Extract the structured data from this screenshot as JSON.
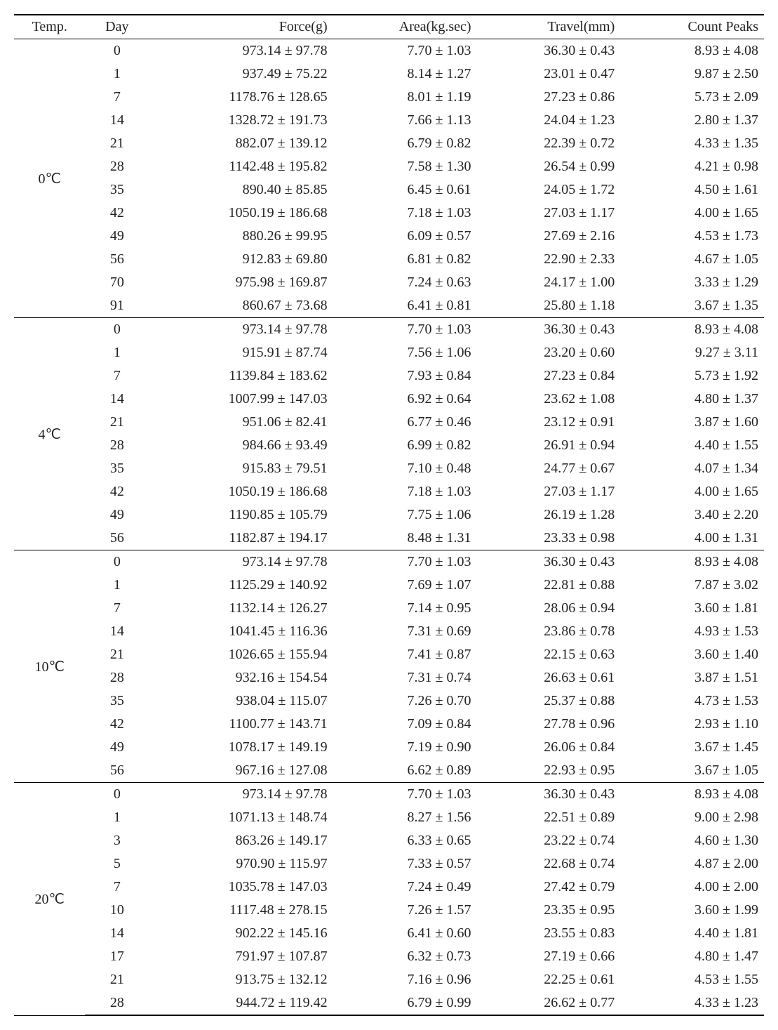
{
  "columns": {
    "temp": "Temp.",
    "day": "Day",
    "force": "Force(g)",
    "area": "Area(kg.sec)",
    "travel": "Travel(mm)",
    "count": "Count Peaks"
  },
  "groups": [
    {
      "temp": "0℃",
      "rows": [
        {
          "day": "0",
          "force": "973.14 ± 97.78",
          "area": "7.70 ± 1.03",
          "travel": "36.30 ± 0.43",
          "count": "8.93 ± 4.08"
        },
        {
          "day": "1",
          "force": "937.49 ± 75.22",
          "area": "8.14 ± 1.27",
          "travel": "23.01 ± 0.47",
          "count": "9.87 ± 2.50"
        },
        {
          "day": "7",
          "force": "1178.76 ± 128.65",
          "area": "8.01 ± 1.19",
          "travel": "27.23 ± 0.86",
          "count": "5.73 ± 2.09"
        },
        {
          "day": "14",
          "force": "1328.72 ± 191.73",
          "area": "7.66 ± 1.13",
          "travel": "24.04 ± 1.23",
          "count": "2.80 ± 1.37"
        },
        {
          "day": "21",
          "force": "882.07 ± 139.12",
          "area": "6.79 ± 0.82",
          "travel": "22.39 ± 0.72",
          "count": "4.33 ± 1.35"
        },
        {
          "day": "28",
          "force": "1142.48 ± 195.82",
          "area": "7.58 ± 1.30",
          "travel": "26.54 ± 0.99",
          "count": "4.21 ± 0.98"
        },
        {
          "day": "35",
          "force": "890.40 ± 85.85",
          "area": "6.45 ± 0.61",
          "travel": "24.05 ± 1.72",
          "count": "4.50 ± 1.61"
        },
        {
          "day": "42",
          "force": "1050.19 ± 186.68",
          "area": "7.18 ± 1.03",
          "travel": "27.03 ± 1.17",
          "count": "4.00 ± 1.65"
        },
        {
          "day": "49",
          "force": "880.26 ± 99.95",
          "area": "6.09 ± 0.57",
          "travel": "27.69 ± 2.16",
          "count": "4.53 ± 1.73"
        },
        {
          "day": "56",
          "force": "912.83 ± 69.80",
          "area": "6.81 ± 0.82",
          "travel": "22.90 ± 2.33",
          "count": "4.67 ± 1.05"
        },
        {
          "day": "70",
          "force": "975.98 ± 169.87",
          "area": "7.24 ± 0.63",
          "travel": "24.17 ± 1.00",
          "count": "3.33 ± 1.29"
        },
        {
          "day": "91",
          "force": "860.67 ± 73.68",
          "area": "6.41 ± 0.81",
          "travel": "25.80 ± 1.18",
          "count": "3.67 ± 1.35"
        }
      ]
    },
    {
      "temp": "4℃",
      "rows": [
        {
          "day": "0",
          "force": "973.14 ± 97.78",
          "area": "7.70 ± 1.03",
          "travel": "36.30 ± 0.43",
          "count": "8.93 ± 4.08"
        },
        {
          "day": "1",
          "force": "915.91 ± 87.74",
          "area": "7.56 ± 1.06",
          "travel": "23.20 ± 0.60",
          "count": "9.27 ± 3.11"
        },
        {
          "day": "7",
          "force": "1139.84 ± 183.62",
          "area": "7.93 ± 0.84",
          "travel": "27.23 ± 0.84",
          "count": "5.73 ± 1.92"
        },
        {
          "day": "14",
          "force": "1007.99 ± 147.03",
          "area": "6.92 ± 0.64",
          "travel": "23.62 ± 1.08",
          "count": "4.80 ± 1.37"
        },
        {
          "day": "21",
          "force": "951.06 ± 82.41",
          "area": "6.77 ± 0.46",
          "travel": "23.12 ± 0.91",
          "count": "3.87 ± 1.60"
        },
        {
          "day": "28",
          "force": "984.66 ± 93.49",
          "area": "6.99 ± 0.82",
          "travel": "26.91 ± 0.94",
          "count": "4.40 ± 1.55"
        },
        {
          "day": "35",
          "force": "915.83 ± 79.51",
          "area": "7.10 ± 0.48",
          "travel": "24.77 ± 0.67",
          "count": "4.07 ± 1.34"
        },
        {
          "day": "42",
          "force": "1050.19 ± 186.68",
          "area": "7.18 ± 1.03",
          "travel": "27.03 ± 1.17",
          "count": "4.00 ± 1.65"
        },
        {
          "day": "49",
          "force": "1190.85 ± 105.79",
          "area": "7.75 ± 1.06",
          "travel": "26.19 ± 1.28",
          "count": "3.40 ± 2.20"
        },
        {
          "day": "56",
          "force": "1182.87 ± 194.17",
          "area": "8.48 ± 1.31",
          "travel": "23.33 ± 0.98",
          "count": "4.00 ± 1.31"
        }
      ]
    },
    {
      "temp": "10℃",
      "rows": [
        {
          "day": "0",
          "force": "973.14 ± 97.78",
          "area": "7.70 ± 1.03",
          "travel": "36.30 ± 0.43",
          "count": "8.93 ± 4.08"
        },
        {
          "day": "1",
          "force": "1125.29 ± 140.92",
          "area": "7.69 ± 1.07",
          "travel": "22.81 ± 0.88",
          "count": "7.87 ± 3.02"
        },
        {
          "day": "7",
          "force": "1132.14 ± 126.27",
          "area": "7.14 ± 0.95",
          "travel": "28.06 ± 0.94",
          "count": "3.60 ± 1.81"
        },
        {
          "day": "14",
          "force": "1041.45 ± 116.36",
          "area": "7.31 ± 0.69",
          "travel": "23.86 ± 0.78",
          "count": "4.93 ± 1.53"
        },
        {
          "day": "21",
          "force": "1026.65 ± 155.94",
          "area": "7.41 ± 0.87",
          "travel": "22.15 ± 0.63",
          "count": "3.60 ± 1.40"
        },
        {
          "day": "28",
          "force": "932.16 ± 154.54",
          "area": "7.31 ± 0.74",
          "travel": "26.63 ± 0.61",
          "count": "3.87 ± 1.51"
        },
        {
          "day": "35",
          "force": "938.04 ± 115.07",
          "area": "7.26 ± 0.70",
          "travel": "25.37 ± 0.88",
          "count": "4.73 ± 1.53"
        },
        {
          "day": "42",
          "force": "1100.77 ± 143.71",
          "area": "7.09 ± 0.84",
          "travel": "27.78 ± 0.96",
          "count": "2.93 ± 1.10"
        },
        {
          "day": "49",
          "force": "1078.17 ± 149.19",
          "area": "7.19 ± 0.90",
          "travel": "26.06 ± 0.84",
          "count": "3.67 ± 1.45"
        },
        {
          "day": "56",
          "force": "967.16 ± 127.08",
          "area": "6.62 ± 0.89",
          "travel": "22.93 ± 0.95",
          "count": "3.67 ± 1.05"
        }
      ]
    },
    {
      "temp": "20℃",
      "rows": [
        {
          "day": "0",
          "force": "973.14 ± 97.78",
          "area": "7.70 ± 1.03",
          "travel": "36.30 ± 0.43",
          "count": "8.93 ± 4.08"
        },
        {
          "day": "1",
          "force": "1071.13 ± 148.74",
          "area": "8.27 ± 1.56",
          "travel": "22.51 ± 0.89",
          "count": "9.00 ± 2.98"
        },
        {
          "day": "3",
          "force": "863.26 ± 149.17",
          "area": "6.33 ± 0.65",
          "travel": "23.22 ± 0.74",
          "count": "4.60 ± 1.30"
        },
        {
          "day": "5",
          "force": "970.90 ± 115.97",
          "area": "7.33 ± 0.57",
          "travel": "22.68 ± 0.74",
          "count": "4.87 ± 2.00"
        },
        {
          "day": "7",
          "force": "1035.78 ± 147.03",
          "area": "7.24 ± 0.49",
          "travel": "27.42 ± 0.79",
          "count": "4.00 ± 2.00"
        },
        {
          "day": "10",
          "force": "1117.48 ± 278.15",
          "area": "7.26 ± 1.57",
          "travel": "23.35 ± 0.95",
          "count": "3.60 ± 1.99"
        },
        {
          "day": "14",
          "force": "902.22 ± 145.16",
          "area": "6.41 ± 0.60",
          "travel": "23.55 ± 0.83",
          "count": "4.40 ± 1.81"
        },
        {
          "day": "17",
          "force": "791.97 ± 107.87",
          "area": "6.32 ± 0.73",
          "travel": "27.19 ± 0.66",
          "count": "4.80 ± 1.47"
        },
        {
          "day": "21",
          "force": "913.75 ± 132.12",
          "area": "7.16 ± 0.96",
          "travel": "22.25 ± 0.61",
          "count": "4.53 ± 1.55"
        },
        {
          "day": "28",
          "force": "944.72 ± 119.42",
          "area": "6.79 ± 0.99",
          "travel": "26.62 ± 0.77",
          "count": "4.33 ± 1.23"
        }
      ]
    }
  ]
}
